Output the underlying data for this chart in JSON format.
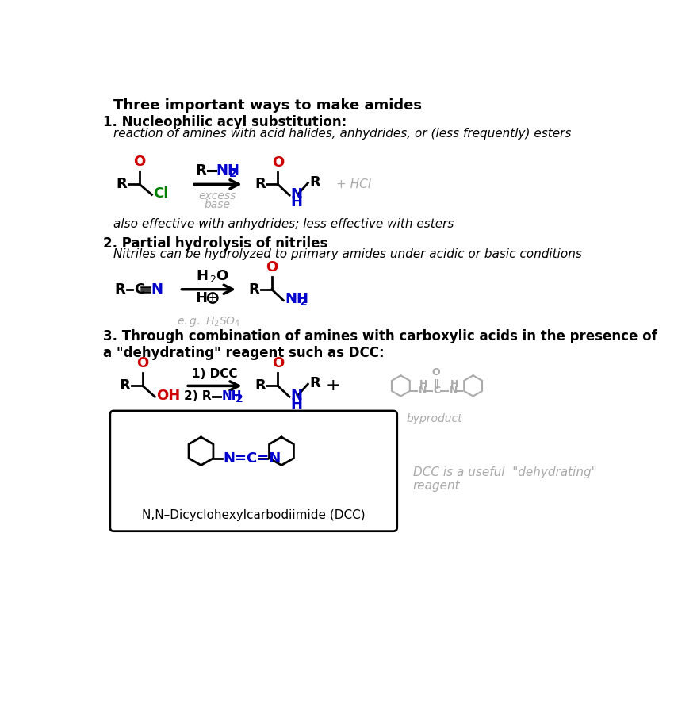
{
  "title": "Three important ways to make amides",
  "bg_color": "#ffffff",
  "black": "#000000",
  "red": "#cc0000",
  "green": "#008000",
  "blue": "#0000cc",
  "gray": "#888888",
  "light_gray": "#aaaaaa",
  "section1_heading": "1. Nucleophilic acyl substitution:",
  "section1_italic": "reaction of amines with acid halides, anhydrides, or (less frequently) esters",
  "section1_note": "also effective with anhydrides; less effective with esters",
  "section2_heading": "2. Partial hydrolysis of nitriles",
  "section2_italic": "Nitriles can be hydrolyzed to primary amides under acidic or basic conditions",
  "section3_heading": "3. Through combination of amines with carboxylic acids in the presence of\na \"dehydrating\" reagent such as DCC:",
  "dcc_label": "N,N–Dicyclohexylcarbodiimide (DCC)",
  "byproduct_label": "byproduct",
  "dcc_note": "DCC is a useful  \"dehydrating\"\nreagent"
}
